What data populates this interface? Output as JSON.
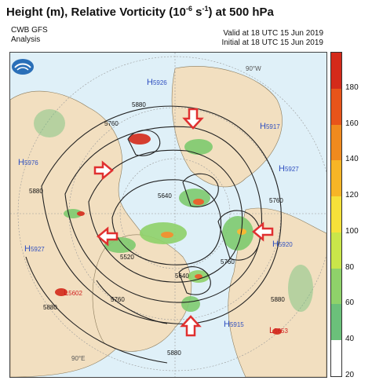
{
  "header": {
    "title": "Height (m), Relative Vorticity (10",
    "title_exp": "-6",
    "title_unit": " s",
    "title_exp2": "-1",
    "title_tail": ") at 500 hPa",
    "source": "CWB GFS",
    "kind": "Analysis",
    "valid": "Valid at 18 UTC 15 Jun 2019",
    "initial": "Initial at 18 UTC 15 Jun 2019"
  },
  "map": {
    "lon_labels": [
      "90°W",
      "90°E"
    ],
    "high_labels": [
      {
        "text": "H",
        "value": "5926"
      },
      {
        "text": "H",
        "value": "5917"
      },
      {
        "text": "H",
        "value": "5976"
      },
      {
        "text": "H",
        "value": "5927"
      },
      {
        "text": "H",
        "value": "5927"
      },
      {
        "text": "H",
        "value": "5920"
      },
      {
        "text": "H",
        "value": "5915"
      }
    ],
    "low_labels": [
      {
        "text": "L",
        "value": "5602"
      },
      {
        "text": "L",
        "value": "5653"
      }
    ],
    "contour_labels": [
      "5880",
      "5760",
      "5640",
      "5520",
      "5640",
      "5760",
      "5880",
      "5880",
      "5760",
      "5880",
      "5760",
      "5880"
    ]
  },
  "colorbar": {
    "ticks": [
      "180",
      "160",
      "140",
      "120",
      "100",
      "80",
      "60",
      "40",
      "20"
    ],
    "colors": [
      "#d42a1a",
      "#e8541a",
      "#f08a1e",
      "#f7b526",
      "#f6e13a",
      "#c9e64a",
      "#8fd26a",
      "#6bc07a",
      "#ffffff"
    ]
  },
  "colors": {
    "land": "#f2dfc0",
    "ocean": "#dff0f8",
    "contour": "#222222",
    "arrow": "#e03030",
    "vort_green": "#7ecb6f"
  }
}
